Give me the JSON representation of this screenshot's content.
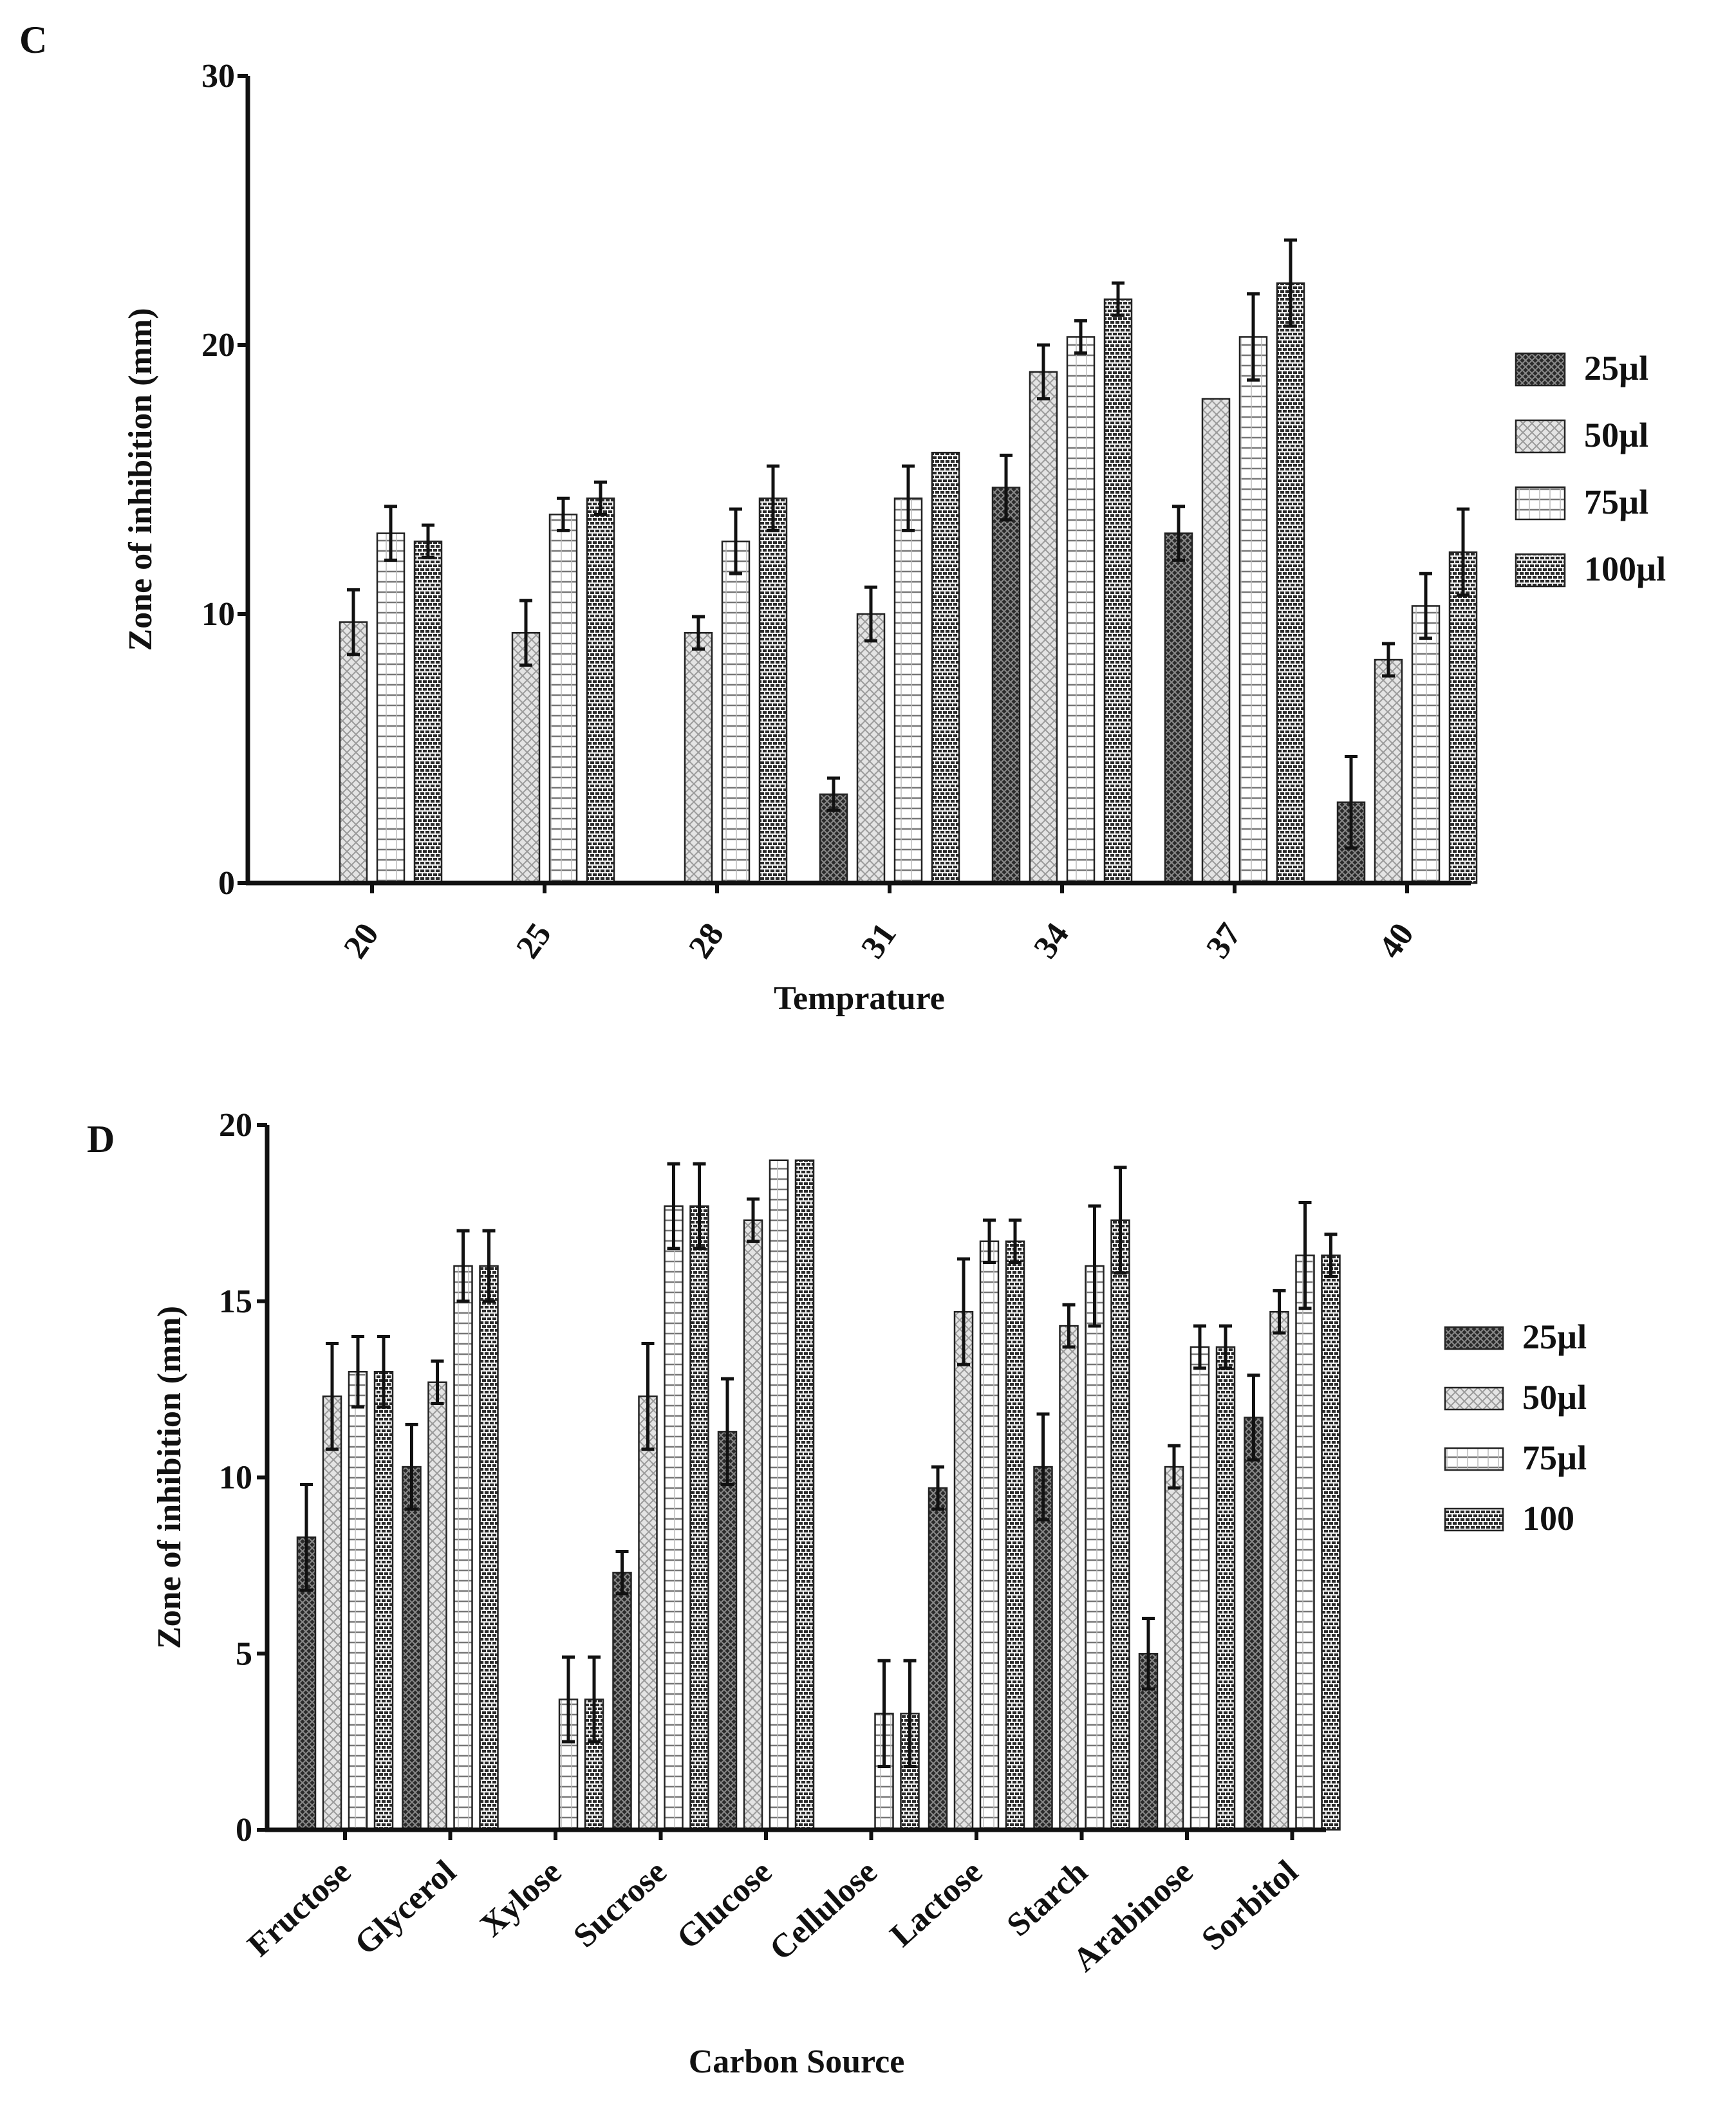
{
  "chart_data": [
    {
      "panel": "C",
      "type": "bar",
      "title": "",
      "xlabel": "Temprature",
      "ylabel": "Zone of inhibition (mm)",
      "ylim": [
        0,
        30
      ],
      "yticks": [
        0,
        10,
        20,
        30
      ],
      "categories": [
        "20",
        "25",
        "28",
        "31",
        "34",
        "37",
        "40"
      ],
      "legend_position": "right",
      "series": [
        {
          "name": "25µl",
          "values": [
            0,
            0,
            0,
            3.3,
            14.7,
            13.0,
            3.0
          ],
          "errors": [
            0,
            0,
            0,
            0.6,
            1.2,
            1.0,
            1.7
          ]
        },
        {
          "name": "50µl",
          "values": [
            9.7,
            9.3,
            9.3,
            10.0,
            19.0,
            18.0,
            8.3
          ],
          "errors": [
            1.2,
            1.2,
            0.6,
            1.0,
            1.0,
            0,
            0.6
          ]
        },
        {
          "name": "75µl",
          "values": [
            13.0,
            13.7,
            12.7,
            14.3,
            20.3,
            20.3,
            10.3
          ],
          "errors": [
            1.0,
            0.6,
            1.2,
            1.2,
            0.6,
            1.6,
            1.2
          ]
        },
        {
          "name": "100µl",
          "values": [
            12.7,
            14.3,
            14.3,
            16.0,
            21.7,
            22.3,
            12.3
          ],
          "errors": [
            0.6,
            0.6,
            1.2,
            0,
            0.6,
            1.6,
            1.6
          ]
        }
      ]
    },
    {
      "panel": "D",
      "type": "bar",
      "title": "",
      "xlabel": "Carbon Source",
      "ylabel": "Zone of inhibition (mm)",
      "ylim": [
        0,
        20
      ],
      "yticks": [
        0,
        5,
        10,
        15,
        20
      ],
      "categories": [
        "Fructose",
        "Glycerol",
        "Xylose",
        "Sucrose",
        "Glucose",
        "Cellulose",
        "Lactose",
        "Starch",
        "Arabinose",
        "Sorbitol"
      ],
      "legend_position": "right",
      "series": [
        {
          "name": "25µl",
          "values": [
            8.3,
            10.3,
            0,
            7.3,
            11.3,
            0,
            9.7,
            10.3,
            5.0,
            11.7
          ],
          "errors": [
            1.5,
            1.2,
            0,
            0.6,
            1.5,
            0,
            0.6,
            1.5,
            1.0,
            1.2
          ]
        },
        {
          "name": "50µl",
          "values": [
            12.3,
            12.7,
            0,
            12.3,
            17.3,
            0,
            14.7,
            14.3,
            10.3,
            14.7
          ],
          "errors": [
            1.5,
            0.6,
            0,
            1.5,
            0.6,
            0,
            1.5,
            0.6,
            0.6,
            0.6
          ]
        },
        {
          "name": "75µl",
          "values": [
            13.0,
            16.0,
            3.7,
            17.7,
            19.0,
            3.3,
            16.7,
            16.0,
            13.7,
            16.3
          ],
          "errors": [
            1.0,
            1.0,
            1.2,
            1.2,
            0,
            1.5,
            0.6,
            1.7,
            0.6,
            1.5
          ]
        },
        {
          "name": "100",
          "values": [
            13.0,
            16.0,
            3.7,
            17.7,
            19.0,
            3.3,
            16.7,
            17.3,
            13.7,
            16.3
          ],
          "errors": [
            1.0,
            1.0,
            1.2,
            1.2,
            0,
            1.5,
            0.6,
            1.5,
            0.6,
            0.6
          ]
        }
      ]
    }
  ]
}
